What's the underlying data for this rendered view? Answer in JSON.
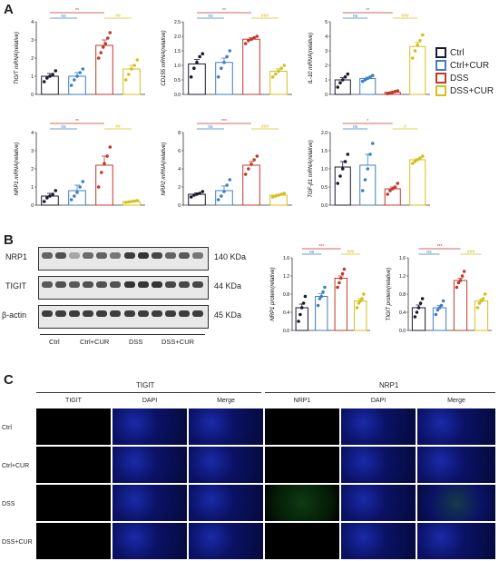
{
  "panel_letters": {
    "a": "A",
    "b": "B",
    "c": "C"
  },
  "colors": {
    "ctrl": "#1a1a2e",
    "ctrl_cur": "#3d7fc4",
    "dss": "#c0392b",
    "dss_cur": "#d4c01c"
  },
  "legend": [
    {
      "label": "Ctrl",
      "color": "#1a1a2e"
    },
    {
      "label": "Ctrl+CUR",
      "color": "#3d7fc4"
    },
    {
      "label": "DSS",
      "color": "#c0392b"
    },
    {
      "label": "DSS+CUR",
      "color": "#d4c01c"
    }
  ],
  "chart_data": [
    {
      "type": "bar",
      "ylabel": "TIGIT mRNA(relative)",
      "ylim": [
        0,
        4
      ],
      "ticks": [
        "0",
        "1",
        "2",
        "3",
        "4"
      ],
      "categories": [
        "Ctrl",
        "Ctrl+CUR",
        "DSS",
        "DSS+CUR"
      ],
      "values": [
        1.0,
        1.0,
        2.7,
        1.4
      ],
      "errors": [
        0.15,
        0.2,
        0.3,
        0.2
      ],
      "points": [
        [
          0.7,
          0.9,
          1.0,
          1.1,
          1.3
        ],
        [
          0.5,
          0.8,
          1.0,
          1.2,
          1.4
        ],
        [
          2.0,
          2.3,
          2.6,
          2.8,
          3.1,
          3.4
        ],
        [
          0.8,
          1.1,
          1.4,
          1.6,
          1.9
        ]
      ],
      "sig": [
        {
          "pair": [
            0,
            2
          ],
          "text": "**",
          "color": "#c0392b"
        },
        {
          "pair": [
            0,
            1
          ],
          "text": "ns",
          "color": "#3d7fc4"
        },
        {
          "pair": [
            2,
            3
          ],
          "text": "##",
          "color": "#d4c01c"
        }
      ]
    },
    {
      "type": "bar",
      "ylabel": "CD155 mRNA(relative)",
      "ylim": [
        0,
        2.5
      ],
      "ticks": [
        "0.0",
        "0.5",
        "1.0",
        "1.5",
        "2.0",
        "2.5"
      ],
      "categories": [
        "Ctrl",
        "Ctrl+CUR",
        "DSS",
        "DSS+CUR"
      ],
      "values": [
        1.05,
        1.1,
        1.9,
        0.8
      ],
      "errors": [
        0.15,
        0.15,
        0.05,
        0.08
      ],
      "points": [
        [
          0.6,
          0.9,
          1.1,
          1.3,
          1.4
        ],
        [
          0.6,
          0.9,
          1.1,
          1.3,
          1.5
        ],
        [
          1.75,
          1.85,
          1.9,
          1.95,
          2.0
        ],
        [
          0.6,
          0.7,
          0.8,
          0.9,
          1.0
        ]
      ],
      "sig": [
        {
          "pair": [
            0,
            2
          ],
          "text": "**",
          "color": "#c0392b"
        },
        {
          "pair": [
            0,
            1
          ],
          "text": "ns",
          "color": "#3d7fc4"
        },
        {
          "pair": [
            2,
            3
          ],
          "text": "###",
          "color": "#d4c01c"
        }
      ]
    },
    {
      "type": "bar",
      "ylabel": "IL-10 mRNA(relative)",
      "ylim": [
        0,
        5
      ],
      "ticks": [
        "0",
        "1",
        "2",
        "3",
        "4",
        "5"
      ],
      "categories": [
        "Ctrl",
        "Ctrl+CUR",
        "DSS",
        "DSS+CUR"
      ],
      "values": [
        1.0,
        1.1,
        0.15,
        3.3
      ],
      "errors": [
        0.15,
        0.08,
        0.04,
        0.3
      ],
      "points": [
        [
          0.5,
          0.8,
          1.0,
          1.2,
          1.4
        ],
        [
          0.9,
          1.0,
          1.1,
          1.2,
          1.3
        ],
        [
          0.05,
          0.1,
          0.15,
          0.2,
          0.25
        ],
        [
          2.5,
          3.0,
          3.4,
          3.7,
          4.1
        ]
      ],
      "sig": [
        {
          "pair": [
            0,
            2
          ],
          "text": "**",
          "color": "#c0392b"
        },
        {
          "pair": [
            0,
            1
          ],
          "text": "ns",
          "color": "#3d7fc4"
        },
        {
          "pair": [
            2,
            3
          ],
          "text": "###",
          "color": "#d4c01c"
        }
      ]
    },
    {
      "type": "bar",
      "ylabel": "NRP1 mRNA(relative)",
      "ylim": [
        0,
        4
      ],
      "ticks": [
        "0",
        "1",
        "2",
        "3",
        "4"
      ],
      "categories": [
        "Ctrl",
        "Ctrl+CUR",
        "DSS",
        "DSS+CUR"
      ],
      "values": [
        0.5,
        0.8,
        2.2,
        0.2
      ],
      "errors": [
        0.15,
        0.3,
        0.5,
        0.03
      ],
      "points": [
        [
          0.2,
          0.4,
          0.5,
          0.6,
          0.8
        ],
        [
          0.3,
          0.5,
          0.7,
          1.0,
          1.3
        ],
        [
          1.0,
          1.8,
          2.3,
          2.7,
          3.2
        ],
        [
          0.15,
          0.18,
          0.2,
          0.22,
          0.25
        ]
      ],
      "sig": [
        {
          "pair": [
            0,
            2
          ],
          "text": "**",
          "color": "#c0392b"
        },
        {
          "pair": [
            0,
            1
          ],
          "text": "ns",
          "color": "#3d7fc4"
        },
        {
          "pair": [
            2,
            3
          ],
          "text": "##",
          "color": "#d4c01c"
        }
      ]
    },
    {
      "type": "bar",
      "ylabel": "NRP2 mRNA(relative)",
      "ylim": [
        0,
        8
      ],
      "ticks": [
        "0",
        "2",
        "4",
        "6",
        "8"
      ],
      "categories": [
        "Ctrl",
        "Ctrl+CUR",
        "DSS",
        "DSS+CUR"
      ],
      "values": [
        1.2,
        1.6,
        4.4,
        1.1
      ],
      "errors": [
        0.15,
        0.5,
        0.4,
        0.1
      ],
      "points": [
        [
          0.9,
          1.1,
          1.2,
          1.3,
          1.5
        ],
        [
          0.6,
          1.0,
          1.5,
          2.2,
          2.8
        ],
        [
          3.4,
          4.0,
          4.5,
          5.0,
          5.4
        ],
        [
          0.9,
          1.0,
          1.1,
          1.2,
          1.3
        ]
      ],
      "sig": [
        {
          "pair": [
            0,
            2
          ],
          "text": "***",
          "color": "#c0392b"
        },
        {
          "pair": [
            0,
            1
          ],
          "text": "ns",
          "color": "#3d7fc4"
        },
        {
          "pair": [
            2,
            3
          ],
          "text": "###",
          "color": "#d4c01c"
        }
      ]
    },
    {
      "type": "bar",
      "ylabel": "TGF-β1 mRNA(relative)",
      "ylim": [
        0,
        2.0
      ],
      "ticks": [
        "0.0",
        "0.5",
        "1.0",
        "1.5",
        "2.0"
      ],
      "categories": [
        "Ctrl",
        "Ctrl+CUR",
        "DSS",
        "DSS+CUR"
      ],
      "values": [
        1.05,
        1.1,
        0.45,
        1.25
      ],
      "errors": [
        0.15,
        0.3,
        0.05,
        0.03
      ],
      "points": [
        [
          0.6,
          0.8,
          1.0,
          1.2,
          1.4
        ],
        [
          0.4,
          0.7,
          1.0,
          1.4,
          1.7
        ],
        [
          0.3,
          0.4,
          0.45,
          0.5,
          0.6
        ],
        [
          1.15,
          1.2,
          1.25,
          1.3,
          1.35
        ]
      ],
      "sig": [
        {
          "pair": [
            0,
            2
          ],
          "text": "*",
          "color": "#c0392b"
        },
        {
          "pair": [
            0,
            1
          ],
          "text": "ns",
          "color": "#3d7fc4"
        },
        {
          "pair": [
            2,
            3
          ],
          "text": "#",
          "color": "#d4c01c"
        }
      ]
    },
    {
      "type": "bar",
      "ylabel": "NRP1 protein(relative)",
      "ylim": [
        0,
        1.6
      ],
      "ticks": [
        "0.0",
        "0.4",
        "0.8",
        "1.2",
        "1.6"
      ],
      "categories": [
        "Ctrl",
        "Ctrl+CUR",
        "DSS",
        "DSS+CUR"
      ],
      "values": [
        0.5,
        0.75,
        1.15,
        0.65
      ],
      "errors": [
        0.08,
        0.06,
        0.05,
        0.05
      ],
      "points": [
        [
          0.2,
          0.35,
          0.5,
          0.6,
          0.75
        ],
        [
          0.55,
          0.7,
          0.75,
          0.85,
          0.95
        ],
        [
          0.95,
          1.05,
          1.15,
          1.25,
          1.35
        ],
        [
          0.5,
          0.6,
          0.65,
          0.7,
          0.8
        ]
      ],
      "sig": [
        {
          "pair": [
            0,
            2
          ],
          "text": "***",
          "color": "#c0392b"
        },
        {
          "pair": [
            0,
            1
          ],
          "text": "ns",
          "color": "#3d7fc4"
        },
        {
          "pair": [
            2,
            3
          ],
          "text": "###",
          "color": "#d4c01c"
        }
      ]
    },
    {
      "type": "bar",
      "ylabel": "TIGIT protein(relative)",
      "ylim": [
        0,
        1.6
      ],
      "ticks": [
        "0.0",
        "0.4",
        "0.8",
        "1.2",
        "1.6"
      ],
      "categories": [
        "Ctrl",
        "Ctrl+CUR",
        "DSS",
        "DSS+CUR"
      ],
      "values": [
        0.5,
        0.5,
        1.1,
        0.65
      ],
      "errors": [
        0.06,
        0.05,
        0.05,
        0.04
      ],
      "points": [
        [
          0.3,
          0.4,
          0.5,
          0.6,
          0.7
        ],
        [
          0.35,
          0.45,
          0.5,
          0.55,
          0.65
        ],
        [
          0.95,
          1.05,
          1.1,
          1.2,
          1.3
        ],
        [
          0.5,
          0.6,
          0.65,
          0.7,
          0.8
        ]
      ],
      "sig": [
        {
          "pair": [
            0,
            2
          ],
          "text": "***",
          "color": "#c0392b"
        },
        {
          "pair": [
            0,
            1
          ],
          "text": "ns",
          "color": "#3d7fc4"
        },
        {
          "pair": [
            2,
            3
          ],
          "text": "###",
          "color": "#d4c01c"
        }
      ]
    }
  ],
  "western_blot": {
    "rows": [
      {
        "name": "NRP1",
        "size": "140 KDa"
      },
      {
        "name": "TIGIT",
        "size": "44 KDa"
      },
      {
        "name": "β-actin",
        "size": "45 KDa"
      }
    ],
    "groups": [
      "Ctrl",
      "Ctrl+CUR",
      "DSS",
      "DSS+CUR"
    ]
  },
  "if_panel": {
    "headers": {
      "left": "TIGIT",
      "right": "NRP1"
    },
    "columns": [
      "TIGIT",
      "DAPI",
      "Merge",
      "NRP1",
      "DAPI",
      "Merge"
    ],
    "rows": [
      "Ctrl",
      "Ctrl+CUR",
      "DSS",
      "DSS+CUR"
    ]
  }
}
